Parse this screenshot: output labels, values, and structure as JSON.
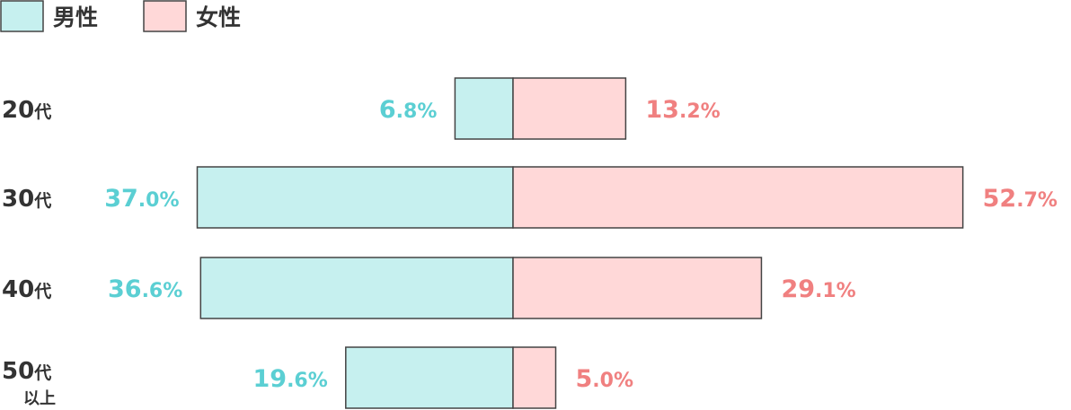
{
  "chart_data": {
    "type": "bar",
    "orientation": "horizontal-diverging",
    "categories": [
      "20代",
      "30代",
      "40代",
      "50代\n以上"
    ],
    "series": [
      {
        "name": "男性",
        "values": [
          6.8,
          37.0,
          36.6,
          19.6
        ],
        "labels": [
          "6.8%",
          "37.0%",
          "36.6%",
          "19.6%"
        ]
      },
      {
        "name": "女性",
        "values": [
          13.2,
          52.7,
          29.1,
          5.0
        ],
        "labels": [
          "13.2%",
          "52.7%",
          "29.1%",
          "5.0%"
        ]
      }
    ],
    "legend_position": "top-left",
    "grid": false
  },
  "colors": {
    "male_fill": "#c6f0ef",
    "female_fill": "#ffd8d8",
    "male_text": "#5bcfd3",
    "female_text": "#f08080",
    "border": "#444444"
  }
}
